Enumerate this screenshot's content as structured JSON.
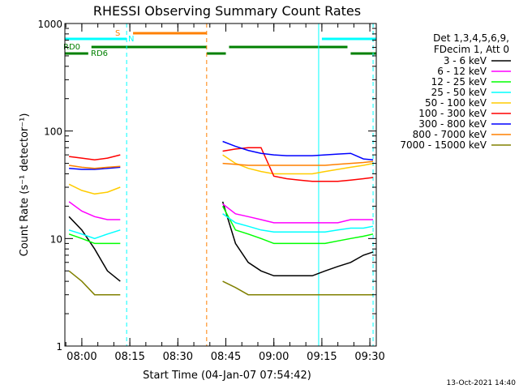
{
  "chart_data": {
    "type": "line",
    "title": "RHESSI Observing Summary Count Rates",
    "xlabel": "Start Time (04-Jan-07 07:54:42)",
    "ylabel": "Count Rate (s⁻¹ detector⁻¹)",
    "yscale": "log",
    "ylim": [
      1,
      1000
    ],
    "xlim": [
      "07:54:42",
      "09:32:00"
    ],
    "x_ticks": [
      "08:00",
      "08:15",
      "08:30",
      "08:45",
      "09:00",
      "09:15",
      "09:30"
    ],
    "y_ticks": [
      "1",
      "10",
      "100",
      "1000"
    ],
    "footer_date": "13-Oct-2021 14:40",
    "legend": {
      "placement": "right",
      "header": [
        "Det 1,3,4,5,6,9,",
        "FDecim 1, Att 0"
      ]
    },
    "flags": [
      {
        "label": "S",
        "color": "#ff8000",
        "segments": [
          [
            "08:16",
            "08:39"
          ]
        ]
      },
      {
        "label": "N",
        "color": "#00ffff",
        "segments": [
          [
            "07:54:42",
            "08:14"
          ],
          [
            "09:15",
            "09:32"
          ]
        ]
      },
      {
        "label": "RD0",
        "color": "#008000",
        "segments": [
          [
            "08:03",
            "08:39"
          ],
          [
            "08:46",
            "09:23"
          ]
        ]
      },
      {
        "label": "RD6",
        "color": "#008000",
        "segments": [
          [
            "07:54:42",
            "08:02"
          ],
          [
            "08:39",
            "08:45"
          ],
          [
            "09:24",
            "09:32"
          ]
        ]
      }
    ],
    "vertical_markers": [
      {
        "time": "08:14",
        "color": "#00ffff",
        "style": "dashed"
      },
      {
        "time": "08:39",
        "color": "#ff8000",
        "style": "dashed"
      },
      {
        "time": "09:14",
        "color": "#00ffff",
        "style": "solid"
      },
      {
        "time": "09:31",
        "color": "#00ffff",
        "style": "dashed"
      }
    ],
    "x_times": [
      "07:56",
      "08:00",
      "08:04",
      "08:08",
      "08:12",
      "08:44",
      "08:48",
      "08:52",
      "08:56",
      "09:00",
      "09:04",
      "09:08",
      "09:12",
      "09:16",
      "09:20",
      "09:24",
      "09:28",
      "09:31"
    ],
    "series": [
      {
        "name": "3 - 6 keV",
        "color": "#000000",
        "values": [
          16,
          12,
          8,
          5,
          4,
          22,
          9,
          6,
          5,
          4.5,
          4.5,
          4.5,
          4.5,
          5,
          5.5,
          6,
          7,
          7.5
        ]
      },
      {
        "name": "6 - 12 keV",
        "color": "#ff00ff",
        "values": [
          22,
          18,
          16,
          15,
          15,
          21,
          17,
          16,
          15,
          14,
          14,
          14,
          14,
          14,
          14,
          15,
          15,
          15
        ]
      },
      {
        "name": "12 - 25 keV",
        "color": "#00ff00",
        "values": [
          11,
          10,
          9,
          9,
          9,
          20,
          12,
          11,
          10,
          9,
          9,
          9,
          9,
          9,
          9.5,
          10,
          10.5,
          11
        ]
      },
      {
        "name": "25 - 50 keV",
        "color": "#00ffff",
        "values": [
          12,
          11,
          10,
          11,
          12,
          17,
          14,
          13,
          12,
          11.5,
          11.5,
          11.5,
          11.5,
          11.5,
          12,
          12.5,
          12.5,
          13
        ]
      },
      {
        "name": "50 - 100 keV",
        "color": "#ffcc00",
        "values": [
          32,
          28,
          26,
          27,
          30,
          60,
          50,
          45,
          42,
          40,
          40,
          40,
          40,
          42,
          44,
          46,
          48,
          50
        ]
      },
      {
        "name": "100 - 300 keV",
        "color": "#ff0000",
        "values": [
          58,
          56,
          54,
          56,
          60,
          65,
          68,
          70,
          70,
          38,
          36,
          35,
          34,
          34,
          34,
          35,
          36,
          37
        ]
      },
      {
        "name": "300 - 800 keV",
        "color": "#0000ff",
        "values": [
          45,
          44,
          44,
          45,
          46,
          80,
          72,
          66,
          62,
          60,
          59,
          59,
          59,
          60,
          61,
          62,
          55,
          54
        ]
      },
      {
        "name": "800 - 7000 keV",
        "color": "#ff8000",
        "values": [
          48,
          46,
          45,
          46,
          47,
          50,
          49,
          48,
          48,
          48,
          48,
          48,
          48,
          48,
          49,
          50,
          51,
          52
        ]
      },
      {
        "name": "7000 - 15000 keV",
        "color": "#808000",
        "values": [
          5,
          4,
          3,
          3,
          3,
          4,
          3.5,
          3,
          3,
          3,
          3,
          3,
          3,
          3,
          3,
          3,
          3,
          3
        ]
      }
    ]
  }
}
